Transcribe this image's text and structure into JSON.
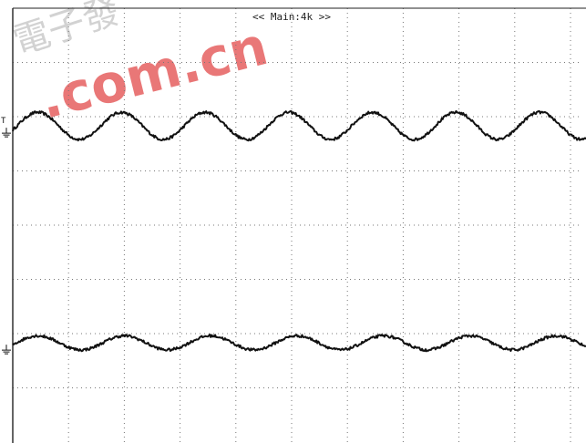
{
  "header": {
    "timebase_label": "<< Main:4k >>"
  },
  "watermark": {
    "text": ".com.cn",
    "cn_text": "電子發"
  },
  "colors": {
    "background": "#ffffff",
    "grid": "#777777",
    "trace": "#111111",
    "watermark": "#e24a4a"
  },
  "chart_data": {
    "type": "line",
    "title": "",
    "xlabel": "",
    "ylabel": "",
    "grid": true,
    "x_divisions": 10,
    "y_divisions": 8,
    "xlim": [
      0,
      10
    ],
    "ylim": [
      -4,
      4
    ],
    "series": [
      {
        "channel_marker": "T",
        "offset_div": 1.83,
        "amplitude_div": 0.25,
        "period_div": 1.5,
        "phase_div": 0.45,
        "noise": true
      },
      {
        "channel_marker": "",
        "offset_div": -2.17,
        "amplitude_div": 0.13,
        "period_div": 1.55,
        "phase_div": 0.45,
        "noise": true
      }
    ]
  }
}
